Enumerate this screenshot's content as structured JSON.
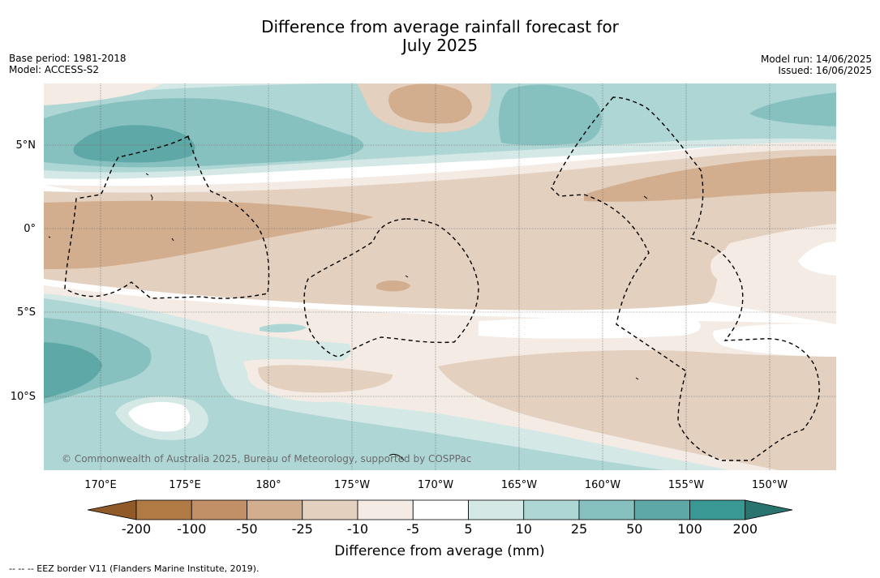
{
  "title_line1": "Difference from average rainfall forecast for",
  "title_line2": "July 2025",
  "base_period": "Base period: 1981-2018",
  "model": "Model: ACCESS-S2",
  "model_run": "Model run: 14/06/2025",
  "issued": "Issued: 16/06/2025",
  "copyright": "© Commonwealth of Australia 2025, Bureau of Meteorology, supported by COSPPac",
  "footnote": "--  --  -- EEZ border V11 (Flanders Marine Institute, 2019).",
  "map": {
    "lon_range": [
      166,
      213
    ],
    "lat_range": [
      -14.5,
      8.5
    ],
    "lon_ticks": [
      "170°E",
      "175°E",
      "180°",
      "175°W",
      "170°W",
      "165°W",
      "160°W",
      "155°W",
      "150°W"
    ],
    "lat_ticks": [
      "5°N",
      "0°",
      "5°S",
      "10°S"
    ],
    "grid": true
  },
  "colorbar": {
    "title": "Difference from average (mm)",
    "labels": [
      "-200",
      "-100",
      "-50",
      "-25",
      "-10",
      "-5",
      "5",
      "10",
      "25",
      "50",
      "100",
      "200"
    ],
    "colors": [
      "#8f5a27",
      "#b07a44",
      "#c19067",
      "#d2ae8e",
      "#e4d0bf",
      "#f3ebe4",
      "#ffffff",
      "#d4e8e6",
      "#aed6d4",
      "#86c1bf",
      "#5ea9a7",
      "#3a9894",
      "#2a7470"
    ]
  }
}
